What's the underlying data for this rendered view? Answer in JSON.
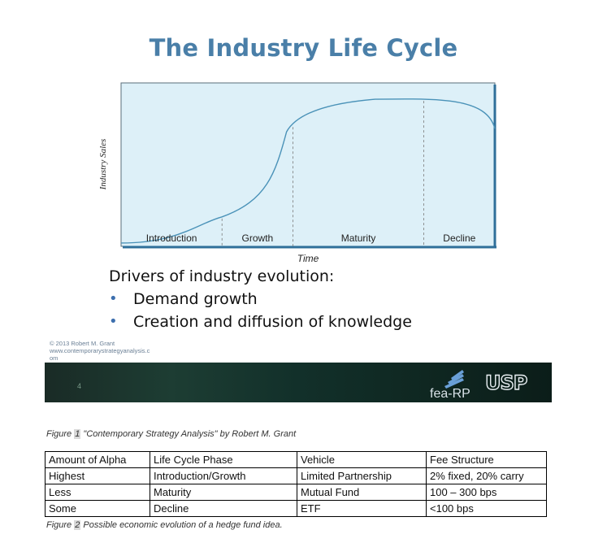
{
  "slide": {
    "title": "The Industry Life Cycle",
    "drivers_heading": "Drivers of industry evolution:",
    "bullets": [
      "Demand growth",
      "Creation and diffusion of knowledge"
    ],
    "copyright_lines": [
      "© 2013 Robert M. Grant",
      "www.contemporarystrategyanalysis.c",
      "om"
    ],
    "slide_number": "4",
    "logos": {
      "left": "fea-RP",
      "right": "USP"
    },
    "accent_color": "#4a7fa8",
    "chart_fill": "#ddf0f8",
    "curve_color": "#4a92b8"
  },
  "chart_data": {
    "type": "line",
    "ylabel": "Industry Sales",
    "xlabel": "Time",
    "phases": [
      "Introduction",
      "Growth",
      "Maturity",
      "Decline"
    ],
    "x": [
      0,
      0.27,
      0.46,
      0.81,
      1
    ],
    "values": [
      0.02,
      0.18,
      0.74,
      0.9,
      0.72
    ],
    "ylim": [
      0,
      1
    ],
    "grid": false
  },
  "captions": {
    "figure1_label": "Figure ",
    "figure1_num": "1",
    "figure1_text": " \"Contemporary Strategy Analysis\" by Robert M. Grant",
    "figure2_label": "Figure ",
    "figure2_num": "2",
    "figure2_text": " Possible economic evolution of a hedge fund idea."
  },
  "table": {
    "headers": [
      "Amount of Alpha",
      "Life Cycle Phase",
      "Vehicle",
      "Fee Structure"
    ],
    "rows": [
      [
        "Highest",
        "Introduction/Growth",
        "Limited Partnership",
        "2% fixed, 20% carry"
      ],
      [
        "Less",
        "Maturity",
        "Mutual Fund",
        "100 – 300 bps"
      ],
      [
        "Some",
        "Decline",
        "ETF",
        "<100 bps"
      ]
    ]
  }
}
